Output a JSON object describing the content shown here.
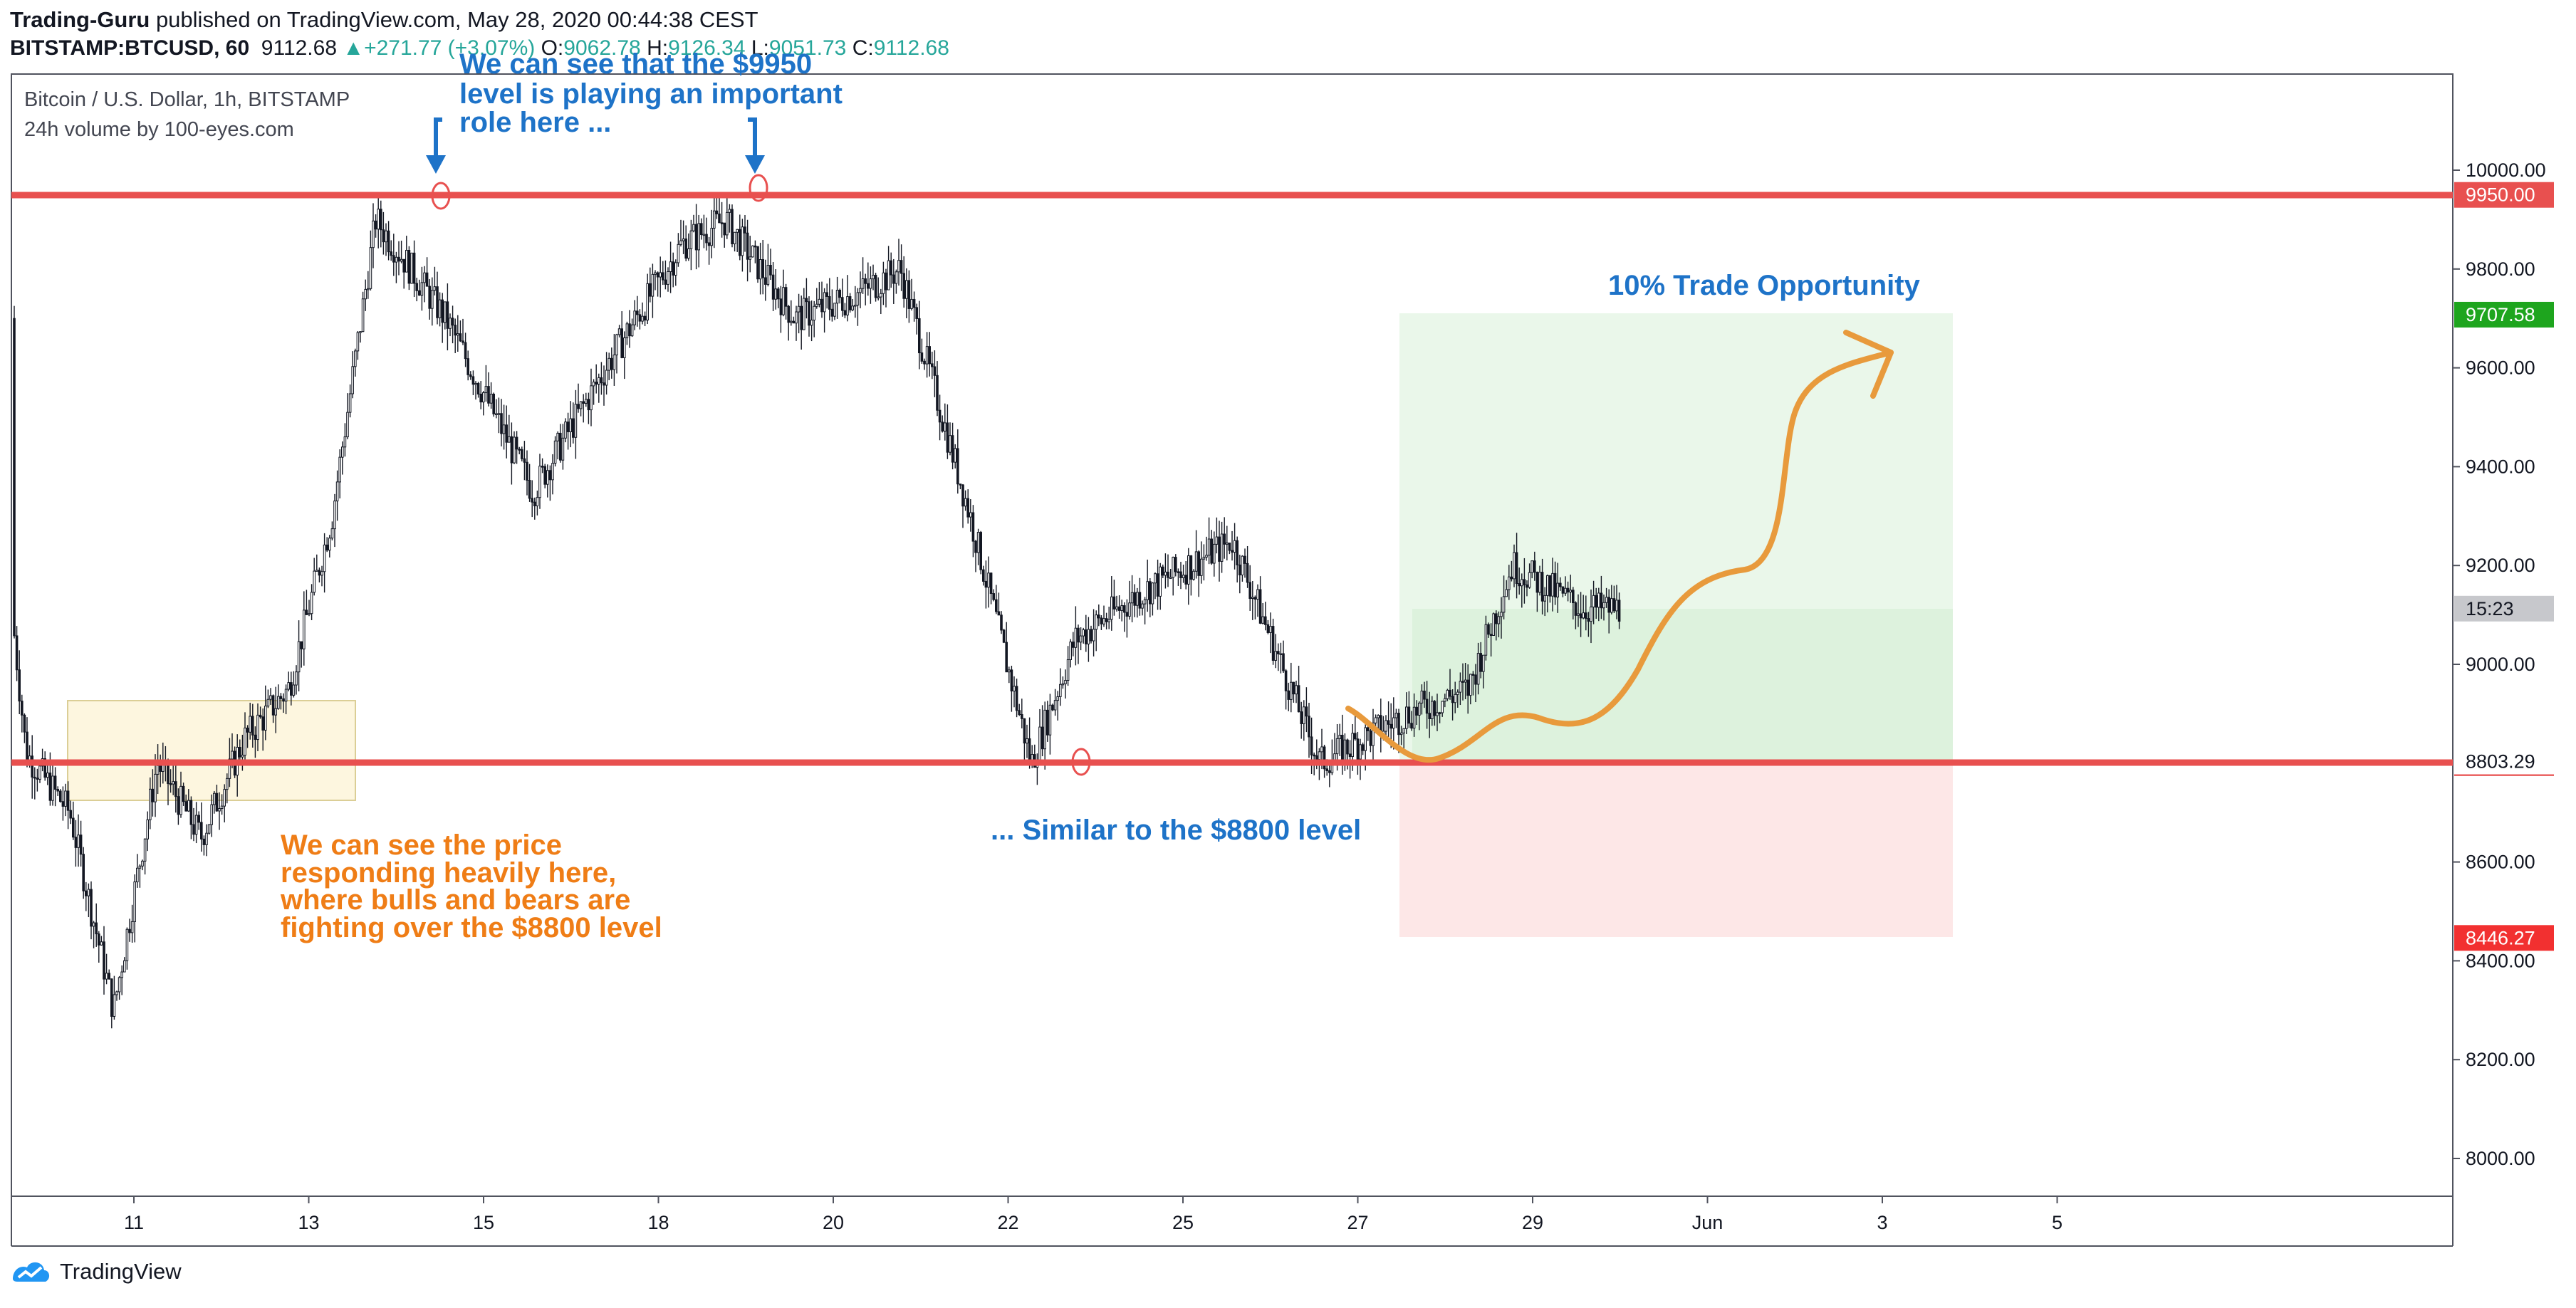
{
  "header": {
    "author": "Trading-Guru",
    "published_text": " published on TradingView.com, May 28, 2020 00:44:38 CEST",
    "symbol": "BITSTAMP:BTCUSD, 60",
    "last": "9112.68",
    "change_arrow": "▲",
    "change": "+271.77 (+3.07%)",
    "o_label": "O:",
    "o_value": "9062.78",
    "h_label": "H:",
    "h_value": "9126.34",
    "l_label": "L:",
    "l_value": "9051.73",
    "c_label": "C:",
    "c_value": "9112.68"
  },
  "legend": {
    "series_title": "Bitcoin / U.S. Dollar, 1h, BITSTAMP",
    "indicator": "24h volume by 100-eyes.com"
  },
  "footer": {
    "brand": "TradingView",
    "logo_icon": "tradingview-logo-icon"
  },
  "colors": {
    "level_line": "#e8504f",
    "annotation_blue": "#1e73c8",
    "annotation_orange": "#ef7d16",
    "path_orange": "#e89a3c",
    "profit_zone": "#e3f4e3",
    "loss_zone": "#fde7e7",
    "target_badge": "#1ea51e",
    "stop_badge": "#f23030",
    "candle": "#131722"
  },
  "chart_data": {
    "type": "candlestick",
    "x_ticks": [
      "11",
      "13",
      "15",
      "18",
      "20",
      "22",
      "25",
      "27",
      "29",
      "Jun",
      "3",
      "5"
    ],
    "y_ticks": [
      "10000.00",
      "9800.00",
      "9600.00",
      "9400.00",
      "9200.00",
      "9000.00",
      "8600.00",
      "8400.00",
      "8200.00",
      "8000.00"
    ],
    "ylim": [
      7950,
      10150
    ],
    "close_path_approx": [
      [
        "May 10",
        9700
      ],
      [
        "May 10",
        8820
      ],
      [
        "May 11",
        8700
      ],
      [
        "May 11",
        8300
      ],
      [
        "May 12",
        8800
      ],
      [
        "May 12",
        8650
      ],
      [
        "May 13",
        8850
      ],
      [
        "May 13",
        8950
      ],
      [
        "May 14",
        9300
      ],
      [
        "May 14",
        9900
      ],
      [
        "May 15",
        9700
      ],
      [
        "May 16",
        9350
      ],
      [
        "May 17",
        9650
      ],
      [
        "May 18",
        9850
      ],
      [
        "May 18",
        9900
      ],
      [
        "May 19",
        9700
      ],
      [
        "May 20",
        9750
      ],
      [
        "May 20",
        9800
      ],
      [
        "May 21",
        9300
      ],
      [
        "May 22",
        8800
      ],
      [
        "May 22",
        9050
      ],
      [
        "May 23",
        9150
      ],
      [
        "May 24",
        9250
      ],
      [
        "May 25",
        8800
      ],
      [
        "May 26",
        8900
      ],
      [
        "May 27",
        8950
      ],
      [
        "May 27",
        9200
      ],
      [
        "May 28",
        9112.68
      ]
    ],
    "levels": [
      {
        "label": "9950.00",
        "value": 9950
      },
      {
        "label": "8800.00",
        "value": 8800
      }
    ],
    "price_labels": [
      {
        "label": "9707.58",
        "value": 9707.58,
        "role": "target"
      },
      {
        "label": "15:23",
        "value": 9112.68,
        "role": "countdown"
      },
      {
        "label": "8803.29",
        "value": 8803.29,
        "role": "cursor"
      },
      {
        "label": "8446.27",
        "value": 8446.27,
        "role": "stop"
      }
    ],
    "annotations": {
      "top_note_line1": "We can see that the $9950",
      "top_note_line2": "level is playing an important",
      "top_note_line3": "role here  ...",
      "bottom_note": "... Similar to the $8800 level",
      "left_note_line1": "We can see the price",
      "left_note_line2": "responding heavily here,",
      "left_note_line3": "where bulls and bears are",
      "left_note_line4": "fighting over the $8800 level",
      "trade_note": "10% Trade Opportunity"
    },
    "trade": {
      "entry": 9112.68,
      "target": 9707.58,
      "stop": 8446.27
    }
  }
}
